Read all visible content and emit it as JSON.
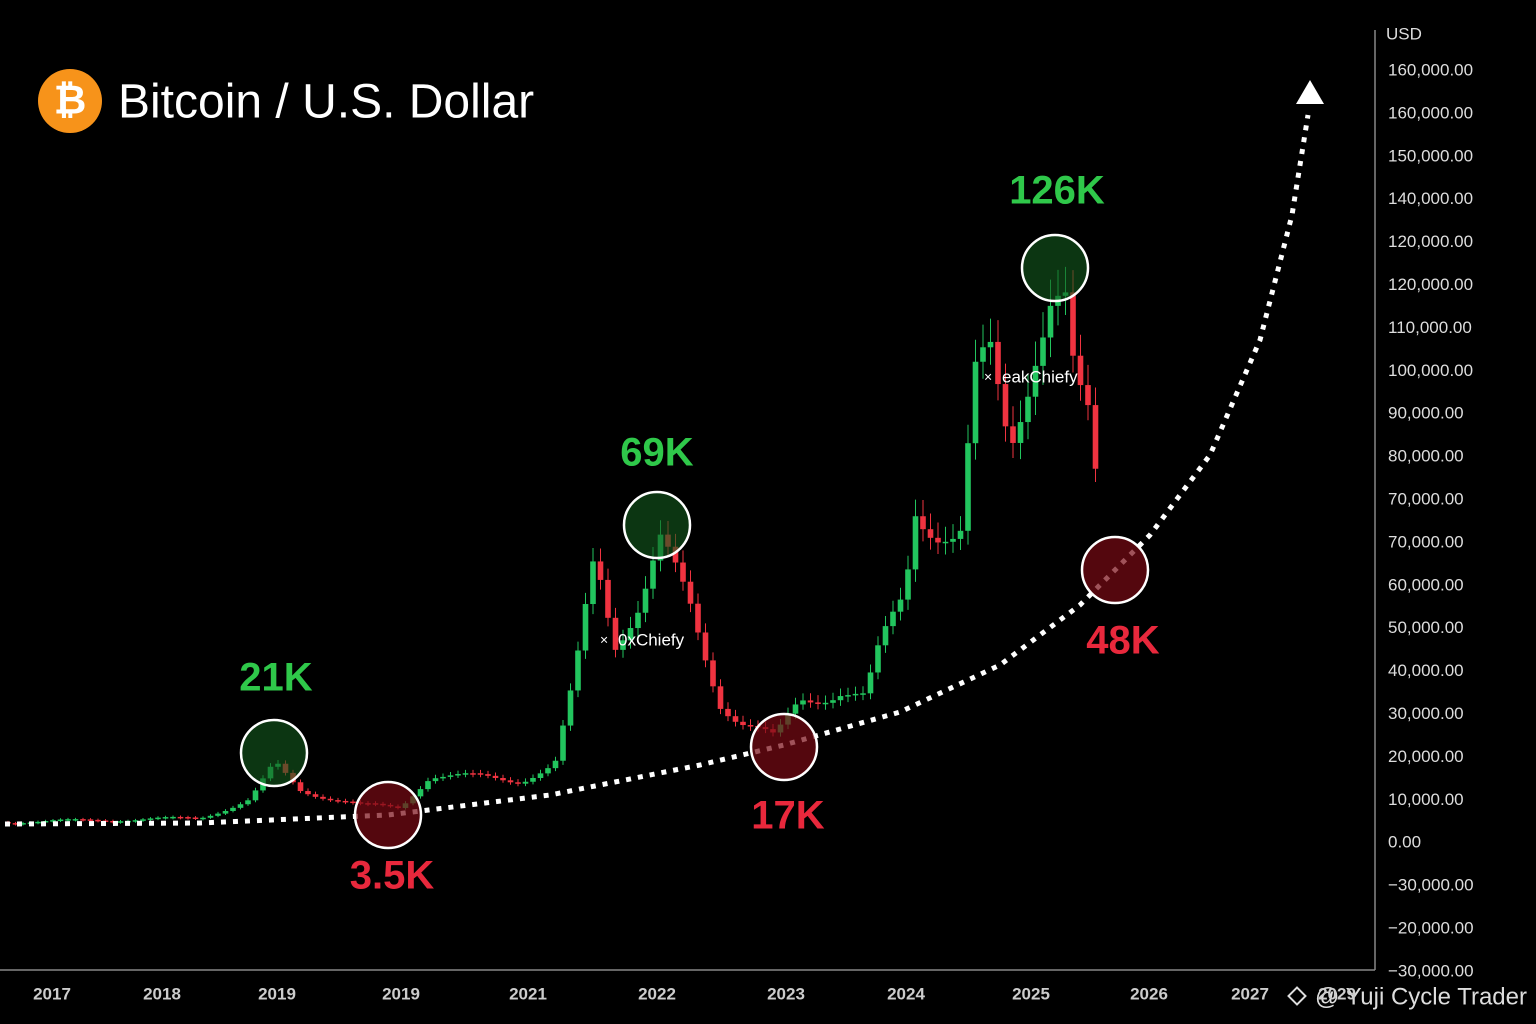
{
  "header": {
    "icon": "₿",
    "title": "Bitcoin / U.S. Dollar"
  },
  "axis": {
    "unit": "USD",
    "y_labels": [
      "160,000.00",
      "160,000.00",
      "150,000.00",
      "140,000.00",
      "120,000.00",
      "120,000.00",
      "110,000.00",
      "100,000.00",
      "90,000.00",
      "80,000.00",
      "70,000.00",
      "70,000.00",
      "60,000.00",
      "50,000.00",
      "40,000.00",
      "30,000.00",
      "20,000.00",
      "10,000.00",
      "0.00",
      "−30,000.00",
      "−20,000.00",
      "−30,000.00"
    ],
    "x_labels": [
      "2017",
      "2018",
      "2019",
      "2019",
      "2021",
      "2022",
      "2023",
      "2024",
      "2025",
      "2026",
      "2027",
      "2029"
    ]
  },
  "annotations": [
    {
      "label": "21K",
      "kind": "peak"
    },
    {
      "label": "3.5K",
      "kind": "bottom"
    },
    {
      "label": "69K",
      "kind": "peak"
    },
    {
      "label": "17K",
      "kind": "bottom"
    },
    {
      "label": "126K",
      "kind": "peak"
    },
    {
      "label": "48K",
      "kind": "bottom"
    }
  ],
  "watermarks": [
    "0xChiefy",
    "eakChiefy"
  ],
  "credit": "@ Yuji Cycle Trader"
}
